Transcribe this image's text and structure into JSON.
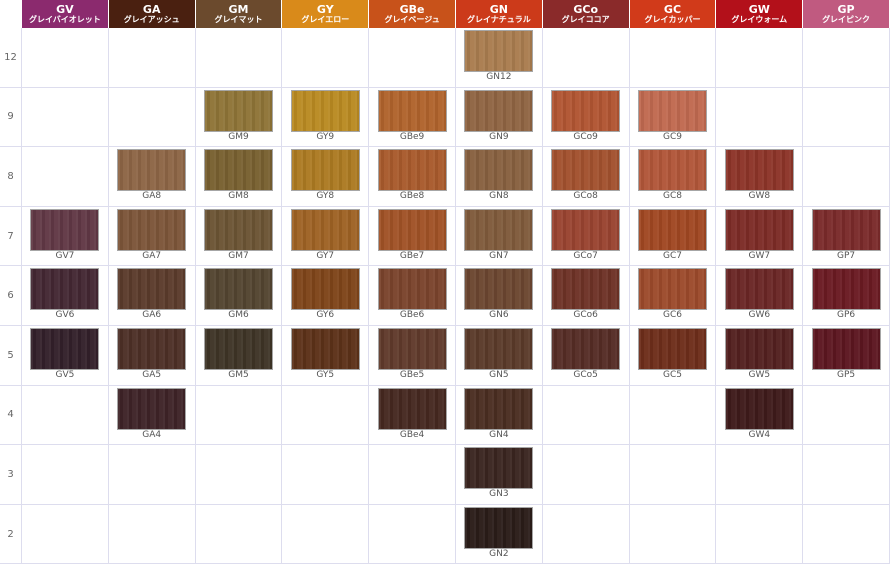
{
  "columns": [
    {
      "code": "GV",
      "name": "グレイバイオレット",
      "color": "#8b2a6e"
    },
    {
      "code": "GA",
      "name": "グレイアッシュ",
      "color": "#4a2010"
    },
    {
      "code": "GM",
      "name": "グレイマット",
      "color": "#6b4a2d"
    },
    {
      "code": "GY",
      "name": "グレイエロー",
      "color": "#d98a1a"
    },
    {
      "code": "GBe",
      "name": "グレイベージュ",
      "color": "#c8521a"
    },
    {
      "code": "GN",
      "name": "グレイナチュラル",
      "color": "#cc3a1a"
    },
    {
      "code": "GCo",
      "name": "グレイココア",
      "color": "#8a2a2a"
    },
    {
      "code": "GC",
      "name": "グレイカッパー",
      "color": "#d13a1a"
    },
    {
      "code": "GW",
      "name": "グレイウォーム",
      "color": "#b3101a"
    },
    {
      "code": "GP",
      "name": "グレイピンク",
      "color": "#c05a80"
    }
  ],
  "rows": [
    {
      "level": "12",
      "cells": [
        null,
        null,
        null,
        null,
        null,
        {
          "label": "GN12",
          "color": "#a97c4f"
        },
        null,
        null,
        null,
        null
      ]
    },
    {
      "level": "9",
      "cells": [
        null,
        null,
        {
          "label": "GM9",
          "color": "#8e7437"
        },
        {
          "label": "GY9",
          "color": "#b98a22"
        },
        {
          "label": "GBe9",
          "color": "#b0632c"
        },
        {
          "label": "GN9",
          "color": "#8f6442"
        },
        {
          "label": "GCo9",
          "color": "#b15532"
        },
        {
          "label": "GC9",
          "color": "#c06950"
        },
        null,
        null
      ]
    },
    {
      "level": "8",
      "cells": [
        null,
        {
          "label": "GA8",
          "color": "#8d6545"
        },
        {
          "label": "GM8",
          "color": "#786030"
        },
        {
          "label": "GY8",
          "color": "#ac7a22"
        },
        {
          "label": "GBe8",
          "color": "#a85a2c"
        },
        {
          "label": "GN8",
          "color": "#87603f"
        },
        {
          "label": "GCo8",
          "color": "#a2512e"
        },
        {
          "label": "GC8",
          "color": "#b15639"
        },
        {
          "label": "GW8",
          "color": "#8c3428"
        },
        null
      ]
    },
    {
      "level": "7",
      "cells": [
        {
          "label": "GV7",
          "color": "#613845"
        },
        {
          "label": "GA7",
          "color": "#7c5539"
        },
        {
          "label": "GM7",
          "color": "#6b5434"
        },
        {
          "label": "GY7",
          "color": "#9e6224"
        },
        {
          "label": "GBe7",
          "color": "#a05226"
        },
        {
          "label": "GN7",
          "color": "#7f5a3b"
        },
        {
          "label": "GCo7",
          "color": "#994330"
        },
        {
          "label": "GC7",
          "color": "#a04722"
        },
        {
          "label": "GW7",
          "color": "#7c2b26"
        },
        {
          "label": "GP7",
          "color": "#7a2a2a"
        }
      ]
    },
    {
      "level": "6",
      "cells": [
        {
          "label": "GV6",
          "color": "#432733"
        },
        {
          "label": "GA6",
          "color": "#5b3b2b"
        },
        {
          "label": "GM6",
          "color": "#534430"
        },
        {
          "label": "GY6",
          "color": "#7e4419"
        },
        {
          "label": "GBe6",
          "color": "#7a432c"
        },
        {
          "label": "GN6",
          "color": "#6b4630"
        },
        {
          "label": "GCo6",
          "color": "#6e3226"
        },
        {
          "label": "GC6",
          "color": "#9c4a2b"
        },
        {
          "label": "GW6",
          "color": "#6a2625"
        },
        {
          "label": "GP6",
          "color": "#6a1a22"
        }
      ]
    },
    {
      "level": "5",
      "cells": [
        {
          "label": "GV5",
          "color": "#33202a"
        },
        {
          "label": "GA5",
          "color": "#4d2f26"
        },
        {
          "label": "GM5",
          "color": "#3e3426"
        },
        {
          "label": "GY5",
          "color": "#5c3118"
        },
        {
          "label": "GBe5",
          "color": "#603a2b"
        },
        {
          "label": "GN5",
          "color": "#5a3a29"
        },
        {
          "label": "GCo5",
          "color": "#552c25"
        },
        {
          "label": "GC5",
          "color": "#6d2d1a"
        },
        {
          "label": "GW5",
          "color": "#53201f"
        },
        {
          "label": "GP5",
          "color": "#5c1620"
        }
      ]
    },
    {
      "level": "4",
      "cells": [
        null,
        {
          "label": "GA4",
          "color": "#3e2327"
        },
        null,
        null,
        {
          "label": "GBe4",
          "color": "#452820"
        },
        {
          "label": "GN4",
          "color": "#4a2d21"
        },
        null,
        null,
        {
          "label": "GW4",
          "color": "#3e1a1a"
        },
        null
      ]
    },
    {
      "level": "3",
      "cells": [
        null,
        null,
        null,
        null,
        null,
        {
          "label": "GN3",
          "color": "#3a2520"
        },
        null,
        null,
        null,
        null
      ]
    },
    {
      "level": "2",
      "cells": [
        null,
        null,
        null,
        null,
        null,
        {
          "label": "GN2",
          "color": "#2a1c18"
        },
        null,
        null,
        null,
        null
      ]
    }
  ]
}
